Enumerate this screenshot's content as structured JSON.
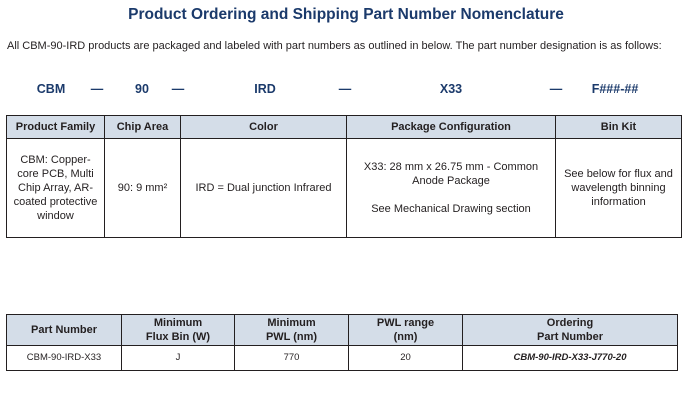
{
  "title": "Product  Ordering and Shipping  Part Number Nomenclature",
  "intro": "All CBM-90-IRD products are packaged and labeled with part numbers as outlined in below. The part number designation is as follows:",
  "part_number_segments": [
    "CBM",
    "—",
    "90",
    "—",
    "IRD",
    "—",
    "X33",
    "—",
    "F###-##"
  ],
  "nomenclature_table": {
    "headers": [
      "Product Family",
      "Chip Area",
      "Color",
      "Package Configuration",
      "Bin Kit"
    ],
    "cells": {
      "product_family": "CBM: Copper-core PCB, Multi Chip Array, AR-coated protective window",
      "chip_area": "90:  9 mm²",
      "color": "IRD = Dual junction Infrared",
      "package_line1": "X33: 28 mm x 26.75 mm - Common Anode Package",
      "package_line2": "See Mechanical Drawing section",
      "bin_kit": "See below for flux and wavelength binning information"
    }
  },
  "ordering_table": {
    "headers": {
      "part_number": "Part Number",
      "min_flux_line1": "Minimum",
      "min_flux_line2": "Flux Bin (W)",
      "min_pwl_line1": "Minimum",
      "min_pwl_line2": "PWL (nm)",
      "pwl_range_line1": "PWL range",
      "pwl_range_line2": "(nm)",
      "ordering_line1": "Ordering",
      "ordering_line2": "Part Number"
    },
    "rows": [
      {
        "part_number": "CBM-90-IRD-X33",
        "min_flux_bin": "J",
        "min_pwl": "770",
        "pwl_range": "20",
        "ordering_part_number": "CBM-90-IRD-X33-J770-20"
      }
    ]
  },
  "colors": {
    "title": "#1b3a6b",
    "header_fill": "#d4dde8",
    "text": "#231f20"
  }
}
